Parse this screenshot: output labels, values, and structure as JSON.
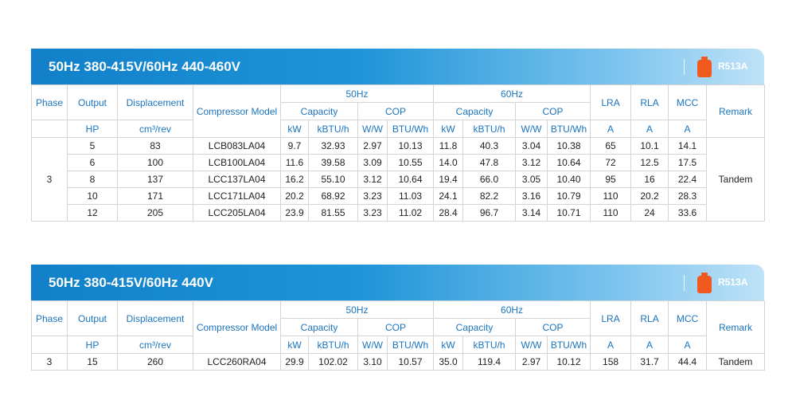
{
  "icon_color": "#f05a1e",
  "refrigerant": "R513A",
  "headers": {
    "phase": "Phase",
    "output": "Output",
    "displacement": "Displacement",
    "model": "Compressor Model",
    "hz50": "50Hz",
    "hz60": "60Hz",
    "capacity": "Capacity",
    "cop": "COP",
    "lra": "LRA",
    "rla": "RLA",
    "mcc": "MCC",
    "remark": "Remark",
    "u_output": "HP",
    "u_displacement": "cm³/rev",
    "u_kw": "kW",
    "u_kbtu": "kBTU/h",
    "u_ww": "W/W",
    "u_btuwh": "BTU/Wh",
    "u_a": "A"
  },
  "tables": [
    {
      "title": "50Hz 380-415V/60Hz 440-460V",
      "phase": "3",
      "remark": "Tandem",
      "rows": [
        [
          "5",
          "83",
          "LCB083LA04",
          "9.7",
          "32.93",
          "2.97",
          "10.13",
          "11.8",
          "40.3",
          "3.04",
          "10.38",
          "65",
          "10.1",
          "14.1"
        ],
        [
          "6",
          "100",
          "LCB100LA04",
          "11.6",
          "39.58",
          "3.09",
          "10.55",
          "14.0",
          "47.8",
          "3.12",
          "10.64",
          "72",
          "12.5",
          "17.5"
        ],
        [
          "8",
          "137",
          "LCC137LA04",
          "16.2",
          "55.10",
          "3.12",
          "10.64",
          "19.4",
          "66.0",
          "3.05",
          "10.40",
          "95",
          "16",
          "22.4"
        ],
        [
          "10",
          "171",
          "LCC171LA04",
          "20.2",
          "68.92",
          "3.23",
          "11.03",
          "24.1",
          "82.2",
          "3.16",
          "10.79",
          "110",
          "20.2",
          "28.3"
        ],
        [
          "12",
          "205",
          "LCC205LA04",
          "23.9",
          "81.55",
          "3.23",
          "11.02",
          "28.4",
          "96.7",
          "3.14",
          "10.71",
          "110",
          "24",
          "33.6"
        ]
      ]
    },
    {
      "title": "50Hz 380-415V/60Hz 440V",
      "phase": "3",
      "remark": "Tandem",
      "rows": [
        [
          "15",
          "260",
          "LCC260RA04",
          "29.9",
          "102.02",
          "3.10",
          "10.57",
          "35.0",
          "119.4",
          "2.97",
          "10.12",
          "158",
          "31.7",
          "44.4"
        ]
      ]
    }
  ]
}
